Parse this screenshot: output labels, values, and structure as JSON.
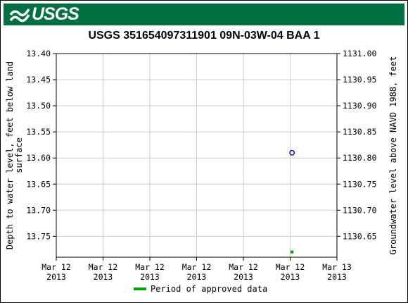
{
  "header": {
    "logo_text": "USGS",
    "logo_color": "#006f41"
  },
  "chart_data": {
    "type": "scatter",
    "title": "USGS 351654097311901 09N-03W-04 BAA 1",
    "ylabel_left_line1": "Depth to water level, feet below land",
    "ylabel_left_line2": "surface",
    "ylabel_right": "Groundwater level above NAVD 1988, feet",
    "ylim_left": [
      13.4,
      13.79
    ],
    "yticks_left": [
      "13.40",
      "13.45",
      "13.50",
      "13.55",
      "13.60",
      "13.65",
      "13.70",
      "13.75"
    ],
    "yticks_right": [
      "1131.00",
      "1130.95",
      "1130.90",
      "1130.85",
      "1130.80",
      "1130.75",
      "1130.70",
      "1130.65"
    ],
    "xticks": [
      [
        "Mar 12",
        "2013"
      ],
      [
        "Mar 12",
        "2013"
      ],
      [
        "Mar 12",
        "2013"
      ],
      [
        "Mar 12",
        "2013"
      ],
      [
        "Mar 12",
        "2013"
      ],
      [
        "Mar 12",
        "2013"
      ],
      [
        "Mar 13",
        "2013"
      ]
    ],
    "points": [
      {
        "x_frac": 0.84,
        "y": 13.59
      }
    ],
    "approved_periods": [
      {
        "x_frac": 0.84,
        "y": 13.78
      }
    ],
    "point_color": "#0000cc",
    "approved_color": "#00a000",
    "grid": true,
    "legend": [
      {
        "label": "Period of approved data",
        "color": "#00a000"
      }
    ],
    "legend_position": "bottom"
  }
}
